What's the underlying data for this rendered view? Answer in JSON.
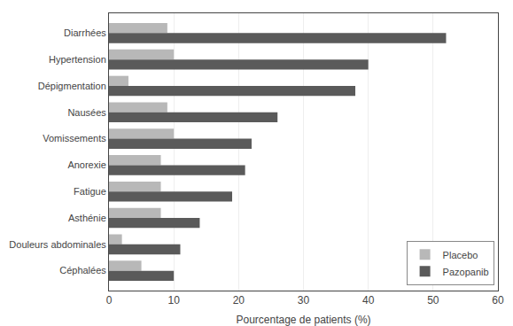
{
  "chart_data": {
    "type": "bar",
    "orientation": "horizontal",
    "categories": [
      "Céphalées",
      "Douleurs abdominales",
      "Asthénie",
      "Fatigue",
      "Anorexie",
      "Vomissements",
      "Nausées",
      "Dépigmentation",
      "Hypertension",
      "Diarrhées"
    ],
    "series": [
      {
        "name": "Placebo",
        "color": "#b8b8b8",
        "values": [
          5,
          2,
          8,
          8,
          8,
          10,
          9,
          3,
          10,
          9
        ]
      },
      {
        "name": "Pazopanib",
        "color": "#5a5a5a",
        "values": [
          10,
          11,
          14,
          19,
          21,
          22,
          26,
          38,
          40,
          52
        ]
      }
    ],
    "xlabel": "Pourcentage de patients (%)",
    "xlim": [
      0,
      60
    ],
    "xticks": [
      0,
      10,
      20,
      30,
      40,
      50,
      60
    ],
    "grid": true,
    "legend": "lower right"
  }
}
